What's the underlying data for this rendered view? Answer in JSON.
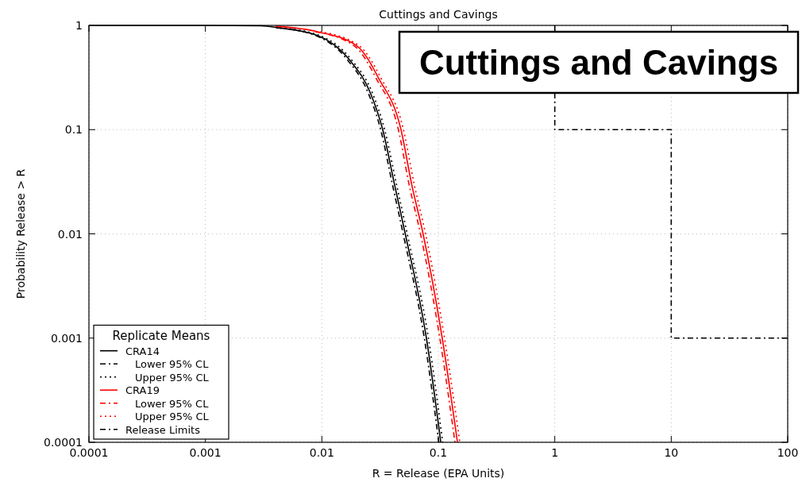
{
  "chart_data": {
    "type": "line",
    "title": "Cuttings and Cavings",
    "xlabel": "R = Release (EPA Units)",
    "ylabel": "Probability Release > R",
    "legend_title": "Replicate Means",
    "legend": "bottom left",
    "log": "xy",
    "grid": true,
    "xlim": [
      0.0001,
      100
    ],
    "ylim": [
      0.0001,
      1
    ],
    "xticks": [
      0.0001,
      0.001,
      0.01,
      0.1,
      1,
      10,
      100
    ],
    "yticks": [
      0.0001,
      0.001,
      0.01,
      0.1,
      1
    ],
    "annotations": [
      "Cuttings and Cavings"
    ],
    "series": [
      {
        "name": "CRA14",
        "color": "#000000",
        "line_style": "solid",
        "x": [
          0.0001,
          0.001,
          0.003,
          0.0042,
          0.0092,
          0.0172,
          0.0263,
          0.0333,
          0.042,
          0.052,
          0.079,
          0.105
        ],
        "values": [
          1,
          0.999,
          0.99,
          0.95,
          0.8,
          0.47,
          0.22,
          0.1,
          0.03,
          0.01,
          0.001,
          0.0001
        ]
      },
      {
        "name": "Lower 95% CL",
        "color": "#000000",
        "line_style": "dashed",
        "x": [
          0.00403,
          0.00883,
          0.0165,
          0.0252,
          0.032,
          0.0403,
          0.0499,
          0.0758,
          0.101
        ],
        "values": [
          0.95,
          0.8,
          0.47,
          0.22,
          0.1,
          0.03,
          0.01,
          0.001,
          0.0001
        ]
      },
      {
        "name": "Upper 95% CL",
        "color": "#000000",
        "line_style": "dotted",
        "x": [
          0.00437,
          0.00957,
          0.0179,
          0.0274,
          0.0346,
          0.0437,
          0.0541,
          0.0822,
          0.109
        ],
        "values": [
          0.95,
          0.8,
          0.47,
          0.22,
          0.1,
          0.03,
          0.01,
          0.001,
          0.0001
        ]
      },
      {
        "name": "CRA19",
        "color": "#ff0000",
        "line_style": "solid",
        "x": [
          0.004,
          0.0092,
          0.0202,
          0.0308,
          0.0478,
          0.059,
          0.074,
          0.108,
          0.146
        ],
        "values": [
          0.98,
          0.87,
          0.63,
          0.31,
          0.1,
          0.03,
          0.01,
          0.001,
          0.0001
        ]
      },
      {
        "name": "Lower 95% CL",
        "color": "#ff0000",
        "line_style": "dashed",
        "x": [
          0.00874,
          0.0192,
          0.0293,
          0.0454,
          0.056,
          0.0703,
          0.103,
          0.139
        ],
        "values": [
          0.87,
          0.63,
          0.31,
          0.1,
          0.03,
          0.01,
          0.001,
          0.0001
        ]
      },
      {
        "name": "Upper 95% CL",
        "color": "#ff0000",
        "line_style": "dotted",
        "x": [
          0.00966,
          0.0212,
          0.0323,
          0.0502,
          0.062,
          0.0777,
          0.113,
          0.153
        ],
        "values": [
          0.87,
          0.63,
          0.31,
          0.1,
          0.03,
          0.01,
          0.001,
          0.0001
        ]
      },
      {
        "name": "Release Limits",
        "color": "#000000",
        "line_style": "dashed",
        "x": [
          1,
          1,
          10,
          10,
          100
        ],
        "values": [
          1,
          0.1,
          0.1,
          0.001,
          0.001
        ]
      }
    ]
  }
}
